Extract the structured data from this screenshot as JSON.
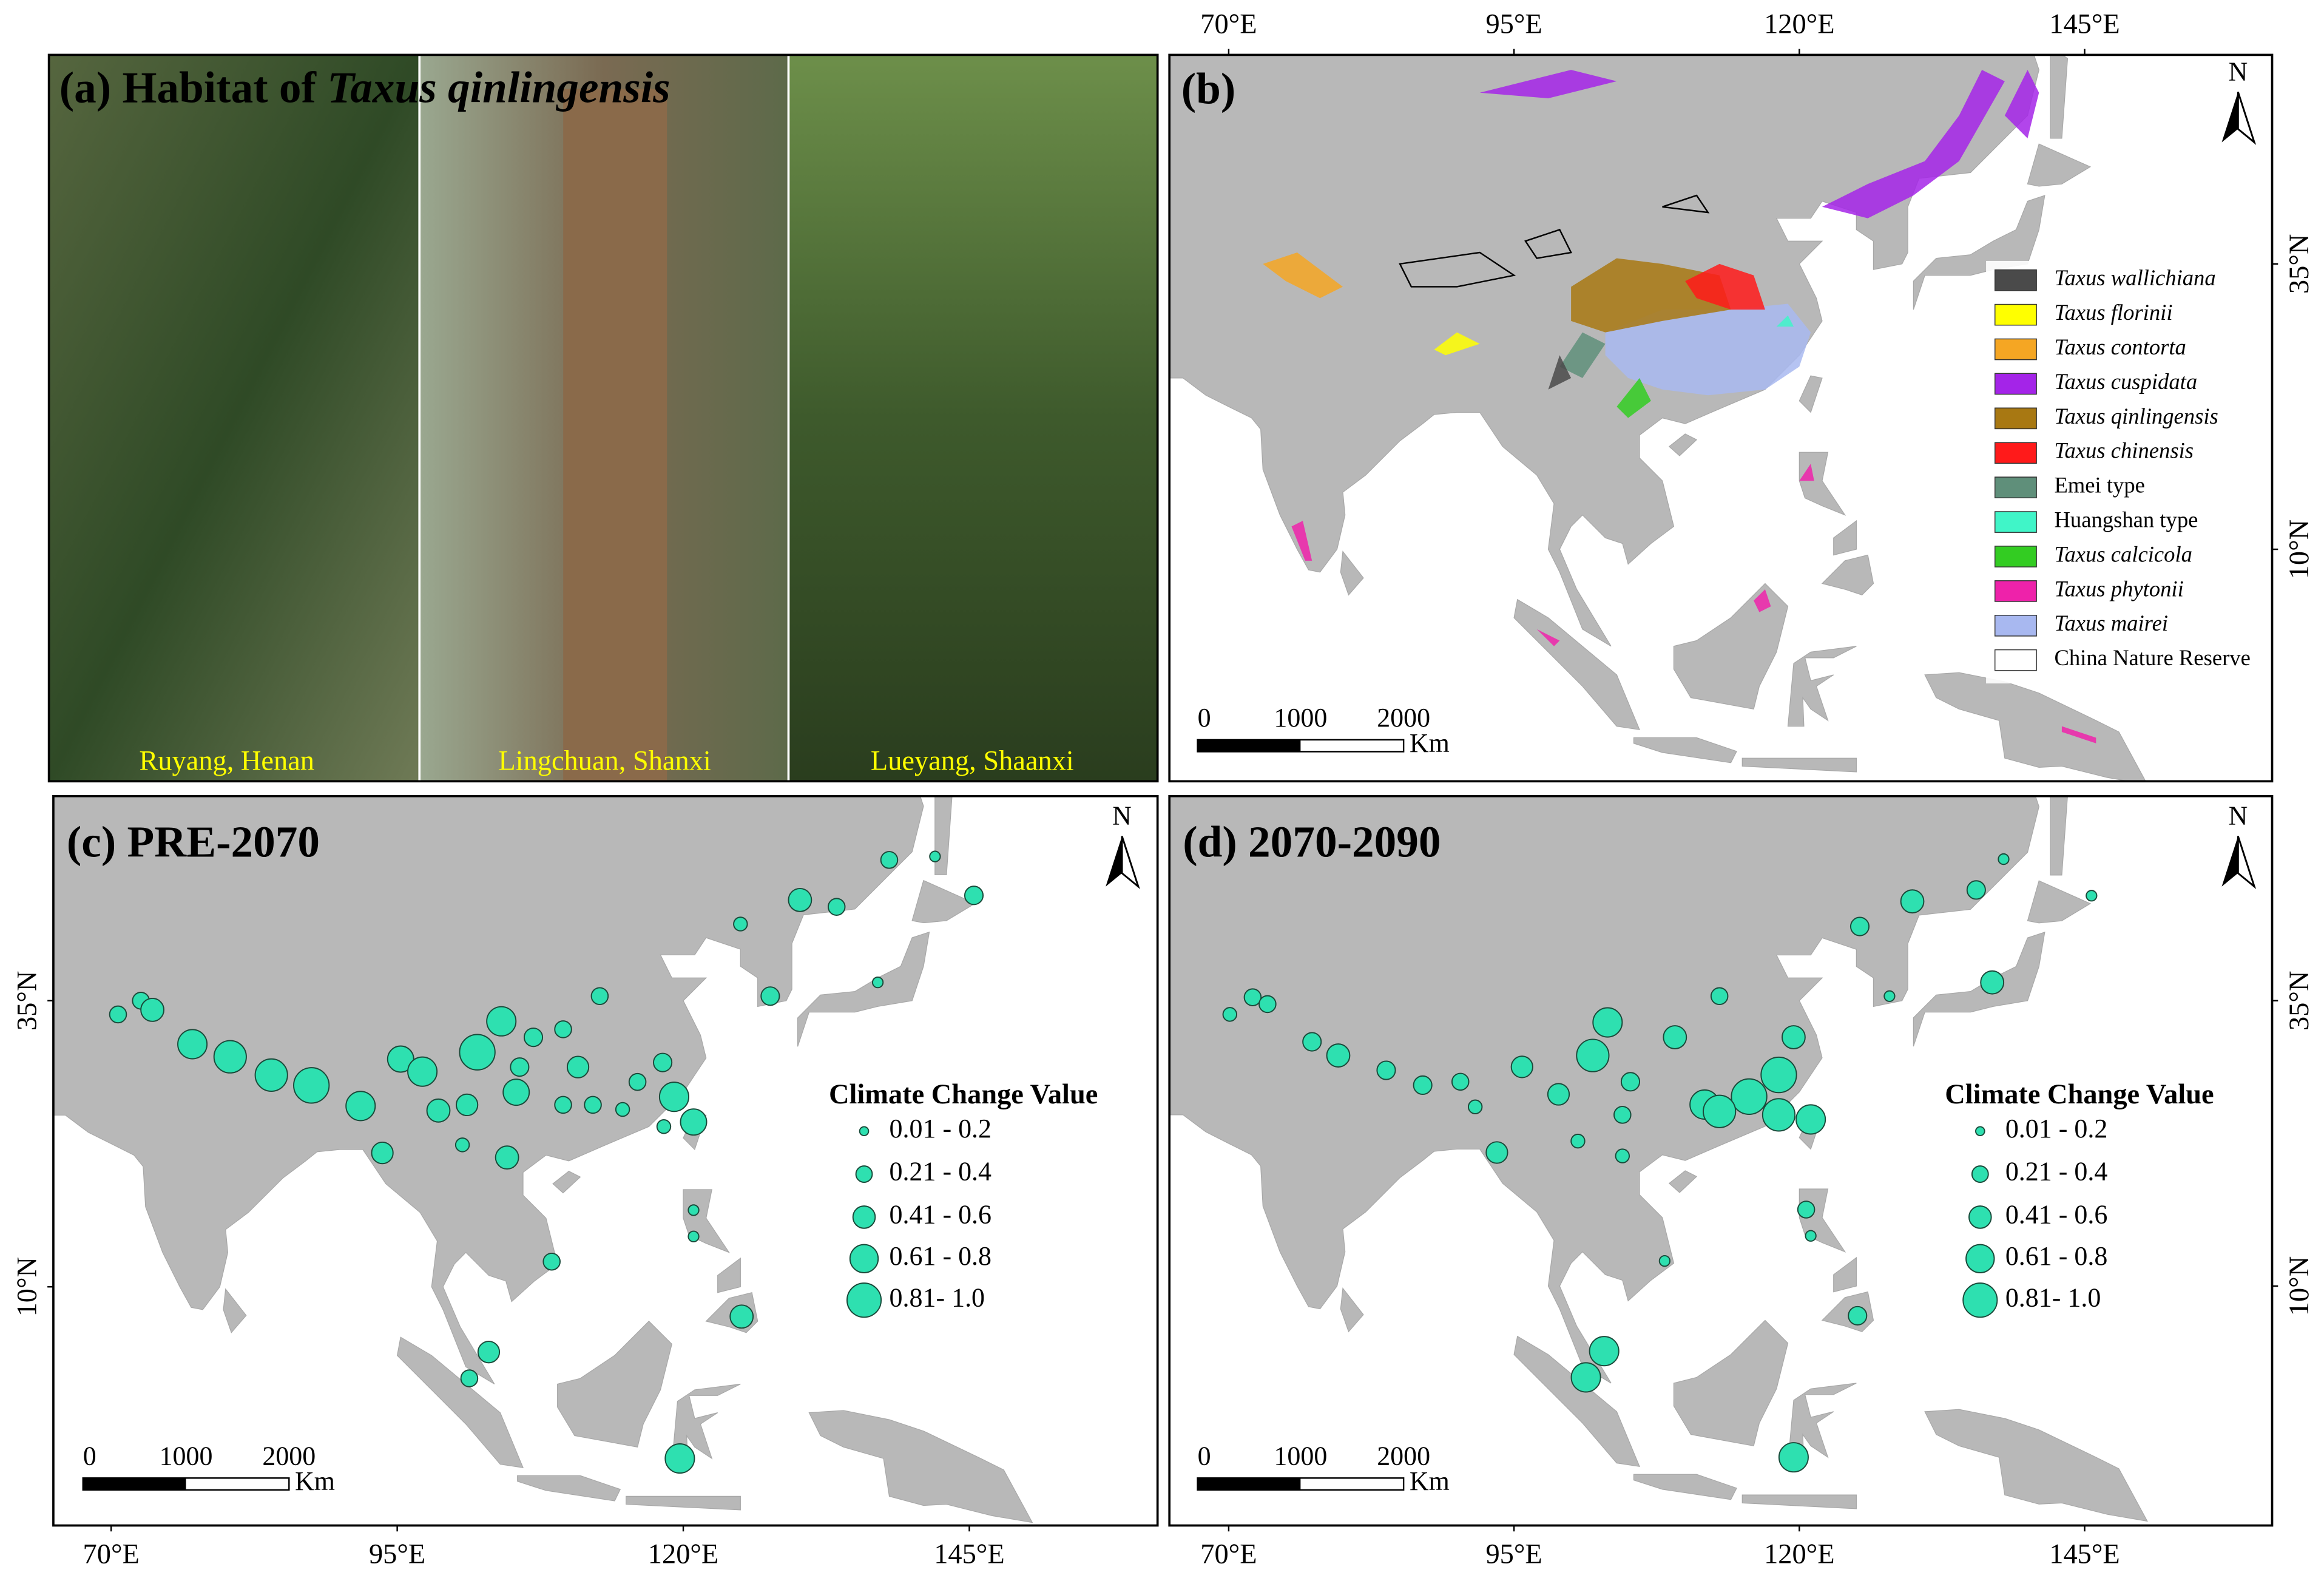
{
  "map_axes": {
    "xticks": [
      {
        "value": 70,
        "label": "70°E"
      },
      {
        "value": 95,
        "label": "95°E"
      },
      {
        "value": 120,
        "label": "120°E"
      },
      {
        "value": 145,
        "label": "145°E"
      }
    ],
    "yticks": [
      {
        "value": 35,
        "label": "35°N"
      },
      {
        "value": 10,
        "label": "10°N"
      }
    ]
  },
  "north": "N",
  "scale_bar": {
    "ticks": [
      0,
      1000,
      2000
    ],
    "unit": "Km"
  },
  "panel_a": {
    "label": "(a) Habitat of ",
    "species": "Taxus qinlingensis",
    "photos": [
      "Ruyang, Henan",
      "Lingchuan, Shanxi",
      "Lueyang, Shaanxi"
    ]
  },
  "panel_b": {
    "label": "(b)",
    "legend": [
      {
        "name": "Taxus wallichiana",
        "color": "#4a4a4a",
        "italic": true
      },
      {
        "name": "Taxus florinii",
        "color": "#ffff00",
        "italic": true
      },
      {
        "name": "Taxus contorta",
        "color": "#f5a623",
        "italic": true
      },
      {
        "name": "Taxus cuspidata",
        "color": "#a424e8",
        "italic": true
      },
      {
        "name": "Taxus qinlingensis",
        "color": "#a87812",
        "italic": true
      },
      {
        "name": "Taxus chinensis",
        "color": "#ff1a1a",
        "italic": true
      },
      {
        "name": "Emei type",
        "color": "#5f8f7a",
        "italic": false
      },
      {
        "name": "Huangshan type",
        "color": "#40f5c8",
        "italic": false
      },
      {
        "name": "Taxus calcicola",
        "color": "#33cc22",
        "italic": true
      },
      {
        "name": "Taxus phytonii",
        "color": "#ee22aa",
        "italic": true
      },
      {
        "name": "Taxus mairei",
        "color": "#a8b8f0",
        "italic": true
      },
      {
        "name": "China Nature Reserve",
        "color": "#ffffff",
        "italic": false
      }
    ]
  },
  "legend_title": "Climate Change Value",
  "classes": [
    "0.01 - 0.2",
    "0.21 - 0.4",
    "0.41 - 0.6",
    "0.61 - 0.8",
    "0.81- 1.0"
  ],
  "point_color": "#2ee0b0",
  "panel_c": {
    "label": "(c) PRE-2070",
    "points": [
      {
        "lon": 70.6,
        "lat": 33.8,
        "value": 0.3
      },
      {
        "lon": 72.6,
        "lat": 35.0,
        "value": 0.3
      },
      {
        "lon": 73.6,
        "lat": 34.2,
        "value": 0.5
      },
      {
        "lon": 77.1,
        "lat": 31.2,
        "value": 0.7
      },
      {
        "lon": 80.4,
        "lat": 30.1,
        "value": 0.8
      },
      {
        "lon": 84.0,
        "lat": 28.5,
        "value": 0.8
      },
      {
        "lon": 87.5,
        "lat": 27.6,
        "value": 0.9
      },
      {
        "lon": 91.8,
        "lat": 25.8,
        "value": 0.7
      },
      {
        "lon": 93.7,
        "lat": 21.7,
        "value": 0.45
      },
      {
        "lon": 95.3,
        "lat": 29.9,
        "value": 0.6
      },
      {
        "lon": 97.2,
        "lat": 28.8,
        "value": 0.7
      },
      {
        "lon": 98.6,
        "lat": 25.4,
        "value": 0.5
      },
      {
        "lon": 102.0,
        "lat": 30.5,
        "value": 0.9
      },
      {
        "lon": 104.1,
        "lat": 33.2,
        "value": 0.7
      },
      {
        "lon": 105.4,
        "lat": 27.0,
        "value": 0.6
      },
      {
        "lon": 104.6,
        "lat": 21.3,
        "value": 0.5
      },
      {
        "lon": 100.7,
        "lat": 22.4,
        "value": 0.2
      },
      {
        "lon": 106.9,
        "lat": 31.8,
        "value": 0.35
      },
      {
        "lon": 109.5,
        "lat": 32.5,
        "value": 0.3
      },
      {
        "lon": 112.7,
        "lat": 35.4,
        "value": 0.3
      },
      {
        "lon": 112.1,
        "lat": 25.9,
        "value": 0.3
      },
      {
        "lon": 114.7,
        "lat": 25.5,
        "value": 0.2
      },
      {
        "lon": 118.2,
        "lat": 29.6,
        "value": 0.35
      },
      {
        "lon": 119.2,
        "lat": 26.6,
        "value": 0.7
      },
      {
        "lon": 120.9,
        "lat": 24.4,
        "value": 0.6
      },
      {
        "lon": 118.3,
        "lat": 24.0,
        "value": 0.2
      },
      {
        "lon": 125.0,
        "lat": 41.7,
        "value": 0.2
      },
      {
        "lon": 130.2,
        "lat": 43.8,
        "value": 0.5
      },
      {
        "lon": 133.4,
        "lat": 43.2,
        "value": 0.3
      },
      {
        "lon": 138.0,
        "lat": 47.3,
        "value": 0.3
      },
      {
        "lon": 142.0,
        "lat": 47.6,
        "value": 0.1
      },
      {
        "lon": 145.4,
        "lat": 44.2,
        "value": 0.35
      },
      {
        "lon": 127.6,
        "lat": 35.4,
        "value": 0.35
      },
      {
        "lon": 137.0,
        "lat": 36.6,
        "value": 0.1
      },
      {
        "lon": 108.5,
        "lat": 12.2,
        "value": 0.3
      },
      {
        "lon": 120.9,
        "lat": 16.7,
        "value": 0.1
      },
      {
        "lon": 120.9,
        "lat": 14.4,
        "value": 0.1
      },
      {
        "lon": 125.1,
        "lat": 7.4,
        "value": 0.5
      },
      {
        "lon": 103.0,
        "lat": 4.3,
        "value": 0.45
      },
      {
        "lon": 101.3,
        "lat": 2.0,
        "value": 0.3
      },
      {
        "lon": 119.7,
        "lat": -5.0,
        "value": 0.7
      },
      {
        "lon": 109.5,
        "lat": 25.9,
        "value": 0.3
      },
      {
        "lon": 116.0,
        "lat": 27.9,
        "value": 0.3
      },
      {
        "lon": 110.8,
        "lat": 29.2,
        "value": 0.45
      },
      {
        "lon": 101.1,
        "lat": 25.9,
        "value": 0.45
      },
      {
        "lon": 105.7,
        "lat": 29.2,
        "value": 0.35
      }
    ]
  },
  "panel_d": {
    "label": "(d) 2070-2090",
    "points": [
      {
        "lon": 70.1,
        "lat": 33.8,
        "value": 0.2
      },
      {
        "lon": 72.1,
        "lat": 35.3,
        "value": 0.3
      },
      {
        "lon": 73.4,
        "lat": 34.7,
        "value": 0.3
      },
      {
        "lon": 77.3,
        "lat": 31.4,
        "value": 0.35
      },
      {
        "lon": 79.6,
        "lat": 30.2,
        "value": 0.5
      },
      {
        "lon": 83.8,
        "lat": 28.9,
        "value": 0.35
      },
      {
        "lon": 87.0,
        "lat": 27.6,
        "value": 0.35
      },
      {
        "lon": 90.3,
        "lat": 27.9,
        "value": 0.3
      },
      {
        "lon": 91.6,
        "lat": 25.7,
        "value": 0.2
      },
      {
        "lon": 93.5,
        "lat": 21.7,
        "value": 0.45
      },
      {
        "lon": 95.7,
        "lat": 29.2,
        "value": 0.45
      },
      {
        "lon": 98.9,
        "lat": 26.8,
        "value": 0.45
      },
      {
        "lon": 101.9,
        "lat": 30.2,
        "value": 0.8
      },
      {
        "lon": 103.2,
        "lat": 33.1,
        "value": 0.7
      },
      {
        "lon": 104.5,
        "lat": 25.0,
        "value": 0.3
      },
      {
        "lon": 105.2,
        "lat": 27.9,
        "value": 0.35
      },
      {
        "lon": 109.1,
        "lat": 31.8,
        "value": 0.5
      },
      {
        "lon": 113.0,
        "lat": 35.4,
        "value": 0.3
      },
      {
        "lon": 111.7,
        "lat": 25.9,
        "value": 0.7
      },
      {
        "lon": 115.6,
        "lat": 26.6,
        "value": 0.9
      },
      {
        "lon": 118.2,
        "lat": 28.5,
        "value": 0.9
      },
      {
        "lon": 119.5,
        "lat": 31.8,
        "value": 0.5
      },
      {
        "lon": 121.0,
        "lat": 24.6,
        "value": 0.7
      },
      {
        "lon": 118.2,
        "lat": 25.0,
        "value": 0.8
      },
      {
        "lon": 113.0,
        "lat": 25.3,
        "value": 0.8
      },
      {
        "lon": 100.6,
        "lat": 22.7,
        "value": 0.2
      },
      {
        "lon": 104.5,
        "lat": 21.4,
        "value": 0.2
      },
      {
        "lon": 125.3,
        "lat": 41.5,
        "value": 0.35
      },
      {
        "lon": 129.9,
        "lat": 43.7,
        "value": 0.5
      },
      {
        "lon": 135.5,
        "lat": 44.7,
        "value": 0.35
      },
      {
        "lon": 137.9,
        "lat": 47.4,
        "value": 0.1
      },
      {
        "lon": 145.6,
        "lat": 44.2,
        "value": 0.1
      },
      {
        "lon": 127.9,
        "lat": 35.4,
        "value": 0.1
      },
      {
        "lon": 136.9,
        "lat": 36.6,
        "value": 0.5
      },
      {
        "lon": 108.2,
        "lat": 12.2,
        "value": 0.1
      },
      {
        "lon": 120.6,
        "lat": 16.7,
        "value": 0.3
      },
      {
        "lon": 121.0,
        "lat": 14.4,
        "value": 0.1
      },
      {
        "lon": 125.1,
        "lat": 7.4,
        "value": 0.35
      },
      {
        "lon": 102.9,
        "lat": 4.3,
        "value": 0.7
      },
      {
        "lon": 101.3,
        "lat": 2.0,
        "value": 0.7
      },
      {
        "lon": 119.5,
        "lat": -5.0,
        "value": 0.7
      }
    ]
  }
}
